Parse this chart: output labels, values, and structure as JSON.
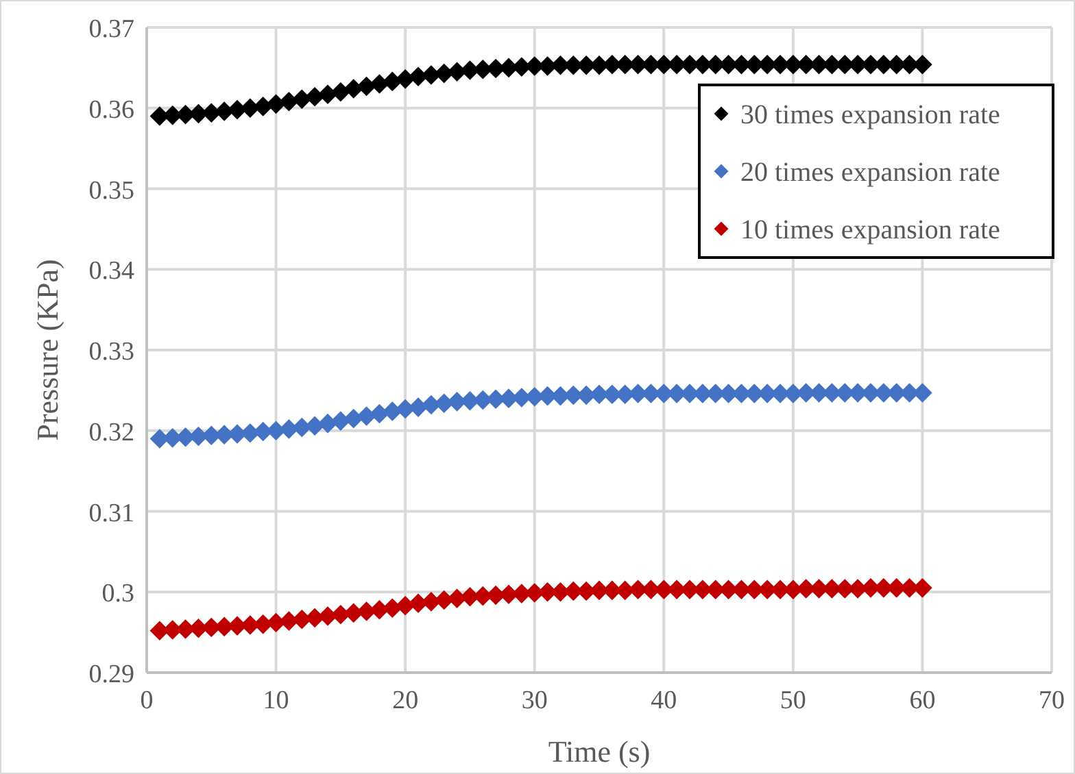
{
  "chart_data": {
    "type": "scatter",
    "xlabel": "Time (s)",
    "ylabel": "Pressure (KPa)",
    "xlim": [
      0,
      70
    ],
    "xticks": [
      0,
      10,
      20,
      30,
      40,
      50,
      60,
      70
    ],
    "ylim": [
      0.29,
      0.37
    ],
    "yticks": [
      0.29,
      0.3,
      0.31,
      0.32,
      0.33,
      0.34,
      0.35,
      0.36,
      0.37
    ],
    "grid": true,
    "legend": "top right",
    "marker": "diamond",
    "x": [
      1,
      2,
      3,
      4,
      5,
      6,
      7,
      8,
      9,
      10,
      11,
      12,
      13,
      14,
      15,
      16,
      17,
      18,
      19,
      20,
      21,
      22,
      23,
      24,
      25,
      26,
      27,
      28,
      29,
      30,
      31,
      32,
      33,
      34,
      35,
      36,
      37,
      38,
      39,
      40,
      41,
      42,
      43,
      44,
      45,
      46,
      47,
      48,
      49,
      50,
      51,
      52,
      53,
      54,
      55,
      56,
      57,
      58,
      59,
      60
    ],
    "series": [
      {
        "name": "30 times expansion rate",
        "color": "#000000",
        "values": [
          0.359,
          0.3591,
          0.3592,
          0.3593,
          0.3594,
          0.3596,
          0.3598,
          0.36,
          0.3602,
          0.3605,
          0.3608,
          0.3611,
          0.3614,
          0.3617,
          0.362,
          0.3624,
          0.3627,
          0.363,
          0.3633,
          0.3636,
          0.3639,
          0.3641,
          0.3643,
          0.3645,
          0.3647,
          0.3648,
          0.3649,
          0.365,
          0.3651,
          0.3652,
          0.3652,
          0.3653,
          0.3653,
          0.3653,
          0.3653,
          0.3654,
          0.3654,
          0.3654,
          0.3654,
          0.3654,
          0.3654,
          0.3654,
          0.3654,
          0.3654,
          0.3654,
          0.3654,
          0.3654,
          0.3654,
          0.3654,
          0.3654,
          0.3654,
          0.3654,
          0.3654,
          0.3654,
          0.3654,
          0.3654,
          0.3654,
          0.3654,
          0.3654,
          0.3654
        ]
      },
      {
        "name": "20 times expansion rate",
        "color": "#4472c4",
        "values": [
          0.319,
          0.3191,
          0.3192,
          0.3193,
          0.3194,
          0.3195,
          0.3196,
          0.3197,
          0.3199,
          0.32,
          0.3202,
          0.3204,
          0.3206,
          0.3209,
          0.3212,
          0.3215,
          0.3218,
          0.3221,
          0.3224,
          0.3227,
          0.3229,
          0.3232,
          0.3234,
          0.3236,
          0.3237,
          0.3238,
          0.3239,
          0.324,
          0.3241,
          0.3242,
          0.3243,
          0.3243,
          0.3244,
          0.3244,
          0.3245,
          0.3245,
          0.3245,
          0.3246,
          0.3246,
          0.3246,
          0.3246,
          0.3246,
          0.3246,
          0.3246,
          0.3246,
          0.3246,
          0.3246,
          0.3246,
          0.3246,
          0.3246,
          0.3247,
          0.3247,
          0.3247,
          0.3247,
          0.3247,
          0.3247,
          0.3247,
          0.3247,
          0.3247,
          0.3247
        ]
      },
      {
        "name": "10 times expansion rate",
        "color": "#c00000",
        "values": [
          0.2952,
          0.2953,
          0.2954,
          0.2955,
          0.2956,
          0.2957,
          0.2958,
          0.2959,
          0.296,
          0.2962,
          0.2964,
          0.2966,
          0.2968,
          0.297,
          0.2972,
          0.2974,
          0.2976,
          0.2978,
          0.298,
          0.2983,
          0.2986,
          0.2988,
          0.299,
          0.2992,
          0.2994,
          0.2995,
          0.2996,
          0.2997,
          0.2998,
          0.2999,
          0.3,
          0.3,
          0.3001,
          0.3001,
          0.3002,
          0.3002,
          0.3002,
          0.3003,
          0.3003,
          0.3003,
          0.3003,
          0.3003,
          0.3003,
          0.3003,
          0.3003,
          0.3003,
          0.3003,
          0.3003,
          0.3003,
          0.3003,
          0.3004,
          0.3004,
          0.3004,
          0.3004,
          0.3004,
          0.3005,
          0.3005,
          0.3005,
          0.3005,
          0.3005
        ]
      }
    ]
  }
}
